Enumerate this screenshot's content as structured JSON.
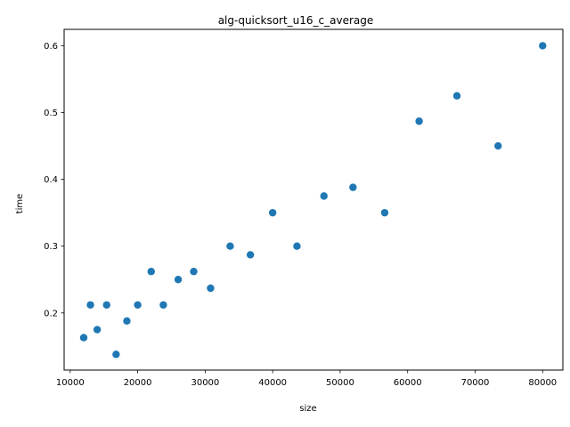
{
  "chart_data": {
    "type": "scatter",
    "title": "alg-quicksort_u16_c_average",
    "xlabel": "size",
    "ylabel": "time",
    "xlim": [
      9100,
      83000
    ],
    "ylim": [
      0.1145,
      0.6245
    ],
    "xticks": [
      10000,
      20000,
      30000,
      40000,
      50000,
      60000,
      70000,
      80000
    ],
    "yticks": [
      0.2,
      0.3,
      0.4,
      0.5,
      0.6
    ],
    "grid": false,
    "marker_color": "#1f77b4",
    "points": [
      {
        "x": 12000,
        "y": 0.163
      },
      {
        "x": 13000,
        "y": 0.212
      },
      {
        "x": 14000,
        "y": 0.175
      },
      {
        "x": 15400,
        "y": 0.212
      },
      {
        "x": 16800,
        "y": 0.138
      },
      {
        "x": 18400,
        "y": 0.188
      },
      {
        "x": 20000,
        "y": 0.212
      },
      {
        "x": 22000,
        "y": 0.262
      },
      {
        "x": 23800,
        "y": 0.212
      },
      {
        "x": 26000,
        "y": 0.25
      },
      {
        "x": 28300,
        "y": 0.262
      },
      {
        "x": 30800,
        "y": 0.237
      },
      {
        "x": 33700,
        "y": 0.3
      },
      {
        "x": 36700,
        "y": 0.287
      },
      {
        "x": 40000,
        "y": 0.35
      },
      {
        "x": 43600,
        "y": 0.3
      },
      {
        "x": 47600,
        "y": 0.375
      },
      {
        "x": 51900,
        "y": 0.388
      },
      {
        "x": 56600,
        "y": 0.35
      },
      {
        "x": 61700,
        "y": 0.487
      },
      {
        "x": 67300,
        "y": 0.525
      },
      {
        "x": 73400,
        "y": 0.45
      },
      {
        "x": 80000,
        "y": 0.6
      }
    ]
  }
}
